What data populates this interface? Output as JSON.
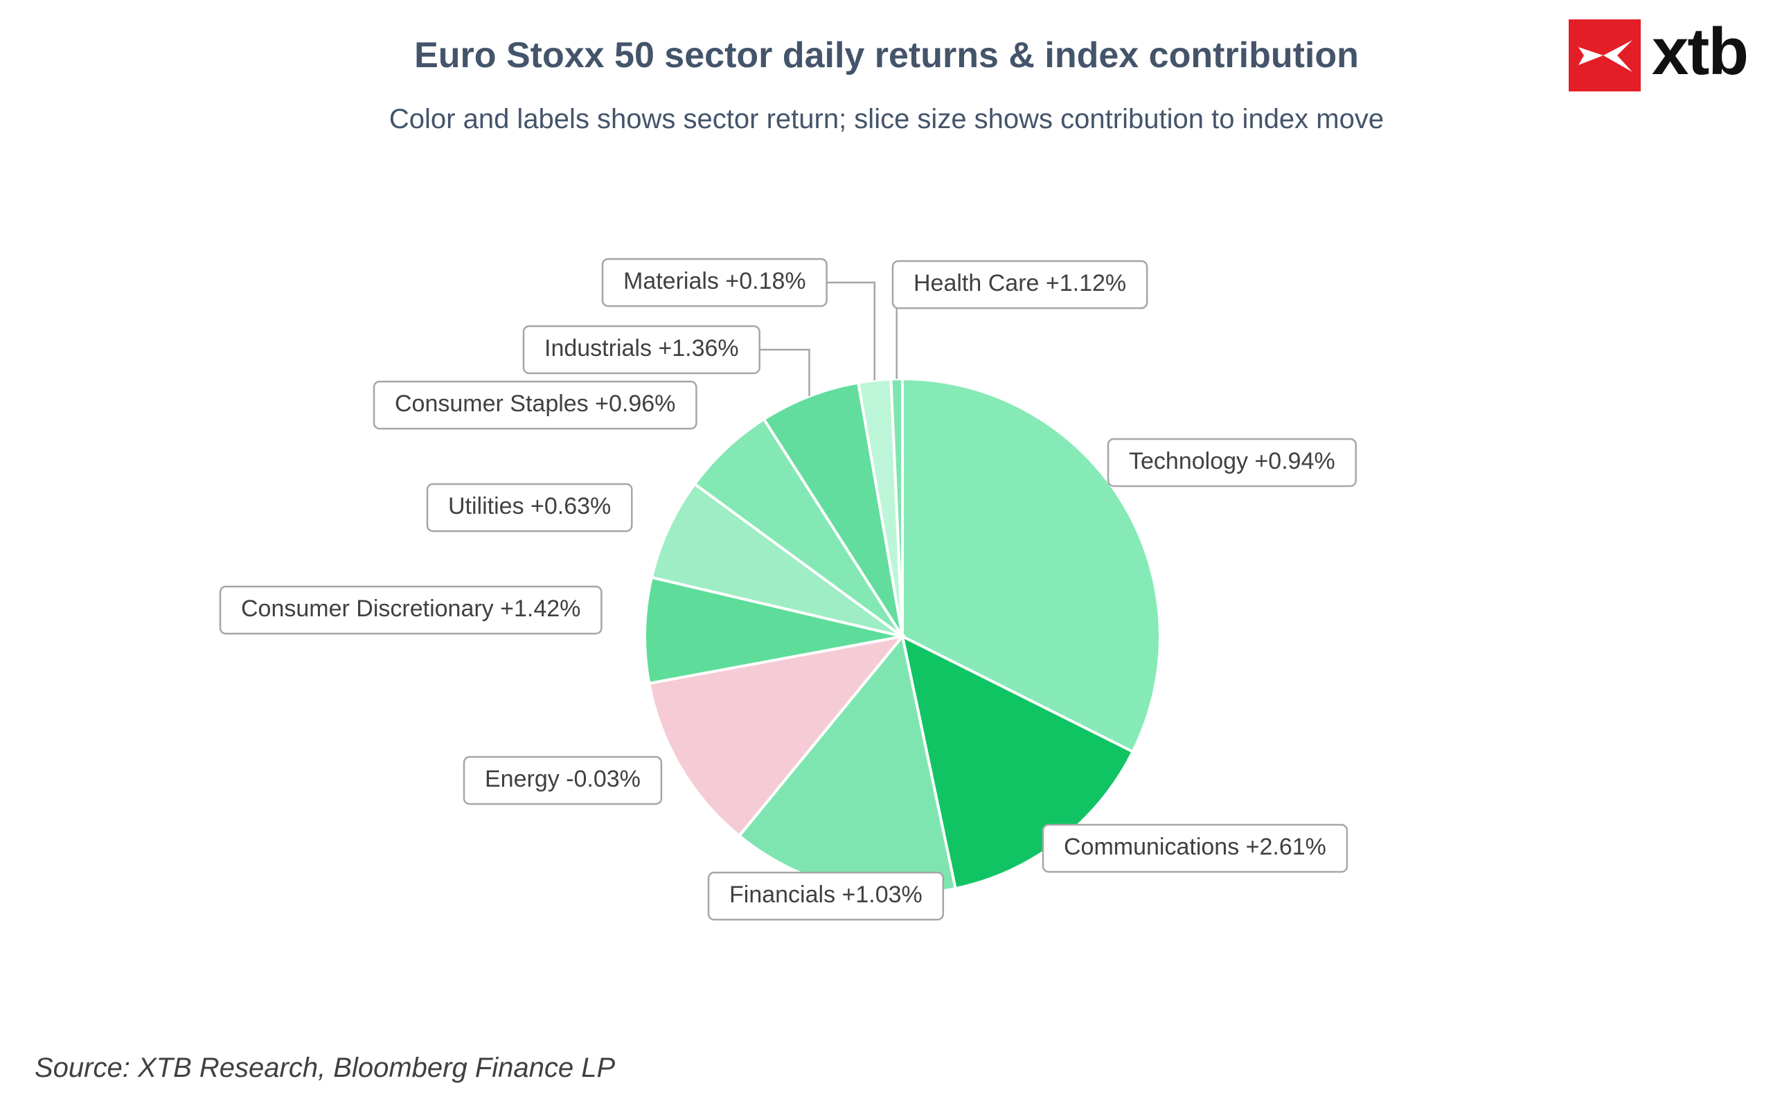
{
  "title": "Euro Stoxx 50 sector daily returns & index contribution",
  "subtitle": "Color and labels shows sector return; slice size shows contribution to index move",
  "source": "Source: XTB Research, Bloomberg Finance LP",
  "logo": {
    "text": "xtb",
    "mark_color": "#e41e26"
  },
  "chart_data": {
    "type": "pie",
    "title": "Euro Stoxx 50 sector daily returns & index contribution",
    "subtitle": "Color and labels shows sector return; slice size shows contribution to index move",
    "slices": [
      {
        "name": "Technology",
        "return_label": "+0.94%",
        "share": 0.319,
        "color": "#86eab6"
      },
      {
        "name": "Communications",
        "return_label": "+2.61%",
        "share": 0.141,
        "color": "#10c463"
      },
      {
        "name": "Financials",
        "return_label": "+1.03%",
        "share": 0.14,
        "color": "#7fe5b0"
      },
      {
        "name": "Energy",
        "return_label": "-0.03%",
        "share": 0.11,
        "color": "#f5cbd5"
      },
      {
        "name": "Consumer Discretionary",
        "return_label": "+1.42%",
        "share": 0.065,
        "color": "#5ddd99"
      },
      {
        "name": "Utilities",
        "return_label": "+0.63%",
        "share": 0.063,
        "color": "#9eedc4"
      },
      {
        "name": "Consumer Staples",
        "return_label": "+0.96%",
        "share": 0.058,
        "color": "#83e8b3"
      },
      {
        "name": "Industrials",
        "return_label": "+1.36%",
        "share": 0.062,
        "color": "#62dd9e"
      },
      {
        "name": "Materials",
        "return_label": "+0.18%",
        "share": 0.02,
        "color": "#bdf5d8"
      },
      {
        "name": "Health Care",
        "return_label": "+1.12%",
        "share": 0.007,
        "color": "#7fe5b0"
      }
    ]
  }
}
